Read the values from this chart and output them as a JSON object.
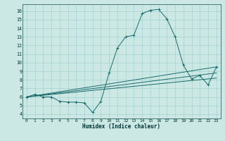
{
  "title": "",
  "xlabel": "Humidex (Indice chaleur)",
  "ylabel": "",
  "bg_color": "#cce8e4",
  "line_color": "#1a6b6b",
  "grid_color": "#99cccc",
  "xlim": [
    -0.5,
    23.5
  ],
  "ylim": [
    3.5,
    16.8
  ],
  "xticks": [
    0,
    1,
    2,
    3,
    4,
    5,
    6,
    7,
    8,
    9,
    10,
    11,
    12,
    13,
    14,
    15,
    16,
    17,
    18,
    19,
    20,
    21,
    22,
    23
  ],
  "yticks": [
    4,
    5,
    6,
    7,
    8,
    9,
    10,
    11,
    12,
    13,
    14,
    15,
    16
  ],
  "line1_x": [
    0,
    1,
    2,
    3,
    4,
    5,
    6,
    7,
    8,
    9,
    10,
    11,
    12,
    13,
    14,
    15,
    16,
    17,
    18,
    19,
    20,
    21,
    22,
    23
  ],
  "line1_y": [
    6.0,
    6.3,
    6.0,
    6.0,
    5.5,
    5.4,
    5.4,
    5.3,
    4.2,
    5.5,
    8.8,
    11.7,
    13.0,
    13.2,
    15.7,
    16.1,
    16.2,
    15.1,
    13.0,
    9.7,
    8.1,
    8.5,
    7.4,
    9.5
  ],
  "line2_x": [
    0,
    23
  ],
  "line2_y": [
    6.0,
    9.5
  ],
  "line3_x": [
    0,
    23
  ],
  "line3_y": [
    6.0,
    8.8
  ],
  "line4_x": [
    0,
    23
  ],
  "line4_y": [
    6.0,
    8.2
  ],
  "tick_fontsize": 4.5,
  "xlabel_fontsize": 5.5,
  "line_width": 0.7,
  "marker_size": 2.5
}
